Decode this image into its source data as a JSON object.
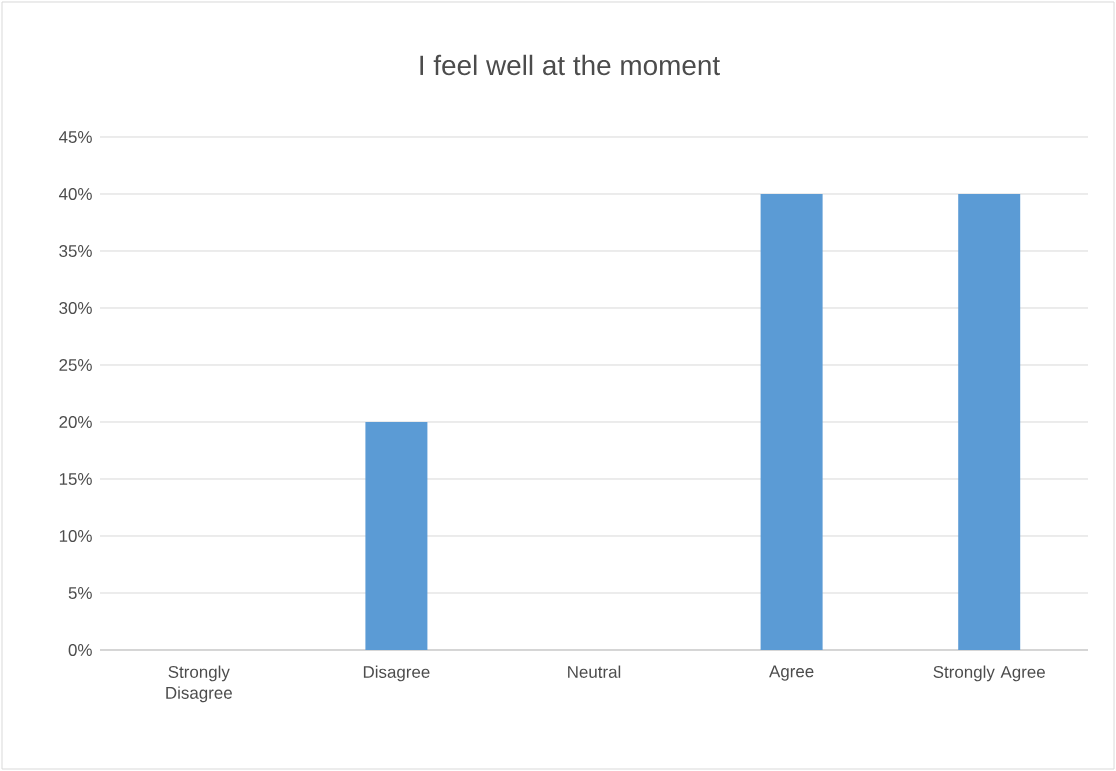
{
  "chart_data": {
    "type": "bar",
    "title": "I feel well at the moment",
    "categories": [
      "Strongly Disagree",
      "Disagree",
      "Neutral",
      "Agree",
      "Strongly Agree"
    ],
    "values": [
      0,
      20,
      0,
      40,
      40
    ],
    "color": "#5b9bd5",
    "ylim": [
      0,
      45
    ],
    "yticks": [
      {
        "value": 0,
        "label": "0%"
      },
      {
        "value": 5,
        "label": "5%"
      },
      {
        "value": 10,
        "label": "10%"
      },
      {
        "value": 15,
        "label": "15%"
      },
      {
        "value": 20,
        "label": "20%"
      },
      {
        "value": 25,
        "label": "25%"
      },
      {
        "value": 30,
        "label": "30%"
      },
      {
        "value": 35,
        "label": "35%"
      },
      {
        "value": 40,
        "label": "40%"
      },
      {
        "value": 45,
        "label": "45%"
      }
    ],
    "grid": "y"
  }
}
